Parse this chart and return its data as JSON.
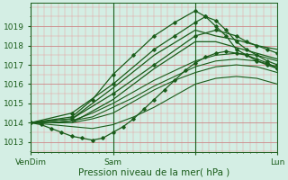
{
  "xlabel": "Pression niveau de la mer( hPa )",
  "bg_color": "#d4eee4",
  "grid_color_major": "#c8b8c8",
  "grid_color_minor": "#e0cce0",
  "line_color": "#1a5c1a",
  "ylim": [
    1012.5,
    1020.2
  ],
  "xlim": [
    0,
    72
  ],
  "yticks": [
    1013,
    1014,
    1015,
    1016,
    1017,
    1018,
    1019
  ],
  "xtick_positions": [
    0,
    24,
    48,
    72
  ],
  "xtick_labels": [
    "VenDim",
    "Sam",
    "",
    "Lun"
  ],
  "lines": [
    {
      "x": [
        0,
        3,
        6,
        9,
        12,
        15,
        18,
        21,
        24,
        27,
        30,
        33,
        36,
        39,
        42,
        45,
        48,
        51,
        54,
        57,
        60,
        63,
        66,
        69,
        72
      ],
      "y": [
        1014.0,
        1013.9,
        1013.7,
        1013.5,
        1013.3,
        1013.2,
        1013.1,
        1013.2,
        1013.5,
        1013.8,
        1014.2,
        1014.7,
        1015.2,
        1015.7,
        1016.2,
        1016.7,
        1017.1,
        1017.4,
        1017.6,
        1017.7,
        1017.6,
        1017.5,
        1017.3,
        1017.1,
        1016.8
      ],
      "marker": true,
      "lw": 0.9
    },
    {
      "x": [
        0,
        6,
        12,
        18,
        24,
        30,
        36,
        42,
        48,
        54,
        60,
        66,
        72
      ],
      "y": [
        1014.0,
        1014.0,
        1014.1,
        1014.5,
        1015.0,
        1015.6,
        1016.2,
        1016.7,
        1017.2,
        1017.5,
        1017.6,
        1017.5,
        1017.2
      ],
      "marker": false,
      "lw": 0.8
    },
    {
      "x": [
        0,
        6,
        12,
        18,
        24,
        30,
        36,
        42,
        48,
        54,
        60,
        66,
        72
      ],
      "y": [
        1014.0,
        1014.0,
        1014.1,
        1014.3,
        1014.8,
        1015.3,
        1015.9,
        1016.4,
        1016.9,
        1017.2,
        1017.3,
        1017.2,
        1016.9
      ],
      "marker": false,
      "lw": 0.8
    },
    {
      "x": [
        0,
        6,
        12,
        18,
        24,
        30,
        36,
        42,
        48,
        54,
        60,
        66,
        72
      ],
      "y": [
        1014.0,
        1014.0,
        1014.0,
        1014.2,
        1014.5,
        1015.1,
        1015.7,
        1016.2,
        1016.6,
        1016.9,
        1017.0,
        1016.9,
        1016.6
      ],
      "marker": false,
      "lw": 0.8
    },
    {
      "x": [
        0,
        12,
        24,
        36,
        48,
        54,
        60,
        66,
        72
      ],
      "y": [
        1014.0,
        1014.2,
        1015.8,
        1017.5,
        1018.8,
        1018.5,
        1018.3,
        1018.0,
        1017.8
      ],
      "marker": false,
      "lw": 0.9
    },
    {
      "x": [
        0,
        12,
        24,
        36,
        42,
        48,
        51,
        54,
        57,
        60,
        63,
        66,
        69,
        72
      ],
      "y": [
        1014.0,
        1014.5,
        1016.0,
        1017.8,
        1018.5,
        1019.2,
        1019.5,
        1019.3,
        1018.8,
        1018.2,
        1017.8,
        1017.5,
        1017.2,
        1017.0
      ],
      "marker": true,
      "lw": 0.9
    },
    {
      "x": [
        0,
        12,
        18,
        24,
        30,
        36,
        42,
        48,
        51,
        54,
        57,
        60,
        63,
        66,
        69,
        72
      ],
      "y": [
        1014.0,
        1014.3,
        1015.2,
        1016.5,
        1017.5,
        1018.5,
        1019.2,
        1019.8,
        1019.5,
        1019.0,
        1018.5,
        1017.8,
        1017.5,
        1017.2,
        1017.0,
        1016.8
      ],
      "marker": true,
      "lw": 0.9
    },
    {
      "x": [
        0,
        12,
        24,
        36,
        48,
        54,
        60,
        63,
        66,
        69,
        72
      ],
      "y": [
        1014.0,
        1014.2,
        1015.5,
        1017.0,
        1018.5,
        1018.8,
        1018.5,
        1018.2,
        1018.0,
        1017.8,
        1017.6
      ],
      "marker": true,
      "lw": 0.9
    },
    {
      "x": [
        0,
        6,
        12,
        18,
        24,
        30,
        36,
        42,
        48,
        54,
        60,
        66,
        72
      ],
      "y": [
        1014.0,
        1013.9,
        1013.8,
        1013.7,
        1013.9,
        1014.3,
        1014.8,
        1015.4,
        1016.0,
        1016.3,
        1016.4,
        1016.3,
        1016.0
      ],
      "marker": false,
      "lw": 0.8
    },
    {
      "x": [
        0,
        12,
        24,
        36,
        48,
        54,
        60,
        66,
        72
      ],
      "y": [
        1014.0,
        1014.0,
        1015.2,
        1016.8,
        1018.2,
        1018.2,
        1017.9,
        1017.6,
        1017.3
      ],
      "marker": false,
      "lw": 0.9
    }
  ],
  "xlabel_fontsize": 7.5,
  "tick_fontsize": 6.5
}
